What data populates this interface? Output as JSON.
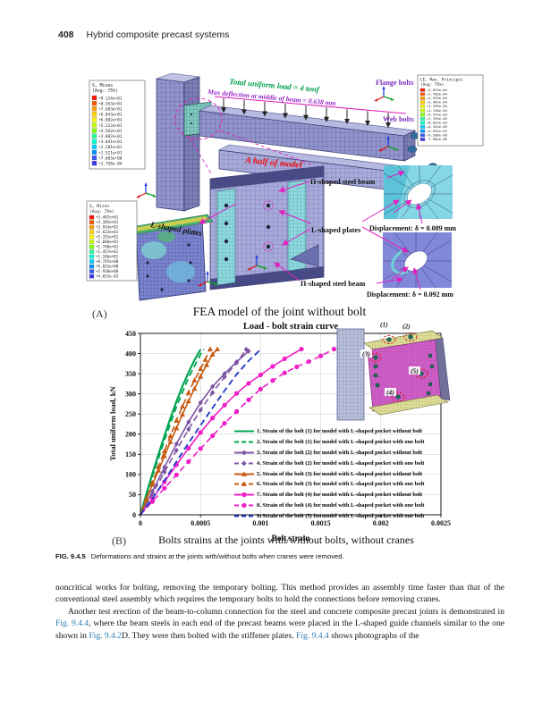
{
  "header": {
    "page_number": "408",
    "running_title": "Hybrid composite precast systems"
  },
  "panelA": {
    "label": "(A)",
    "caption": "FEA model of the joint without bolt"
  },
  "figureA": {
    "annotations": {
      "total_load": "Total uniform load = 4 tonf",
      "max_deflection": "Max deflection at middle of beam = 0.638 mm",
      "half_model": "A half of model",
      "beam_top": "Π-shaped steel beam",
      "plates_mid": "L-shaped plates",
      "beam_bottom": "Π-shaped steel beam",
      "disp1": "Displacement: δ = 0.089 mm",
      "disp2": "Displacement: δ = 0.092 mm",
      "flange_bolts": "Flange bolts",
      "web_bolts": "Web bolts",
      "plates_left": "L-shaped plates"
    },
    "colors": {
      "annotation_magenta": "#e020c0",
      "green_text": "#00a14b",
      "purple_text": "#9626c8",
      "red_text": "#f01010"
    },
    "legends": [
      {
        "title": "S, Mises",
        "subtitle": "(Avg: 75%)",
        "values": [
          "+9.124e+01",
          "+8.363e+01",
          "+7.603e+01",
          "+6.843e+01",
          "+6.082e+01",
          "+5.322e+01",
          "+4.562e+01",
          "+3.802e+01",
          "+3.041e+01",
          "+2.281e+01",
          "+1.521e+01",
          "+7.603e+00",
          "+1.758e-04"
        ]
      },
      {
        "title": "S, Mises",
        "subtitle": "(Avg: 75%)",
        "values": [
          "+3.497e+01",
          "+3.205e+01",
          "+2.914e+01",
          "+2.623e+01",
          "+2.331e+01",
          "+2.040e+01",
          "+1.748e+01",
          "+1.457e+01",
          "+1.166e+01",
          "+8.745e+00",
          "+5.832e+00",
          "+2.918e+00",
          "+4.653e-03"
        ]
      },
      {
        "title": "LE, Max. Principal",
        "subtitle": "(Avg: 75%)",
        "values": [
          "+1.874e-04",
          "+1.703e-04",
          "+1.533e-04",
          "+1.462e-04",
          "+1.299e-04",
          "+1.138e-04",
          "+9.474e-05",
          "+7.763e-05",
          "+6.053e-05",
          "+4.342e-05",
          "+2.632e-05",
          "+9.208e-06",
          "-7.902e-06"
        ]
      }
    ],
    "legend_colors": [
      "#ff1400",
      "#ff5a00",
      "#ff9e00",
      "#ffd200",
      "#fff800",
      "#c8ff00",
      "#82ff00",
      "#2effa0",
      "#00ffd2",
      "#00d2ff",
      "#0096ff",
      "#375afa",
      "#3c3cf0"
    ]
  },
  "chartB": {
    "panel_label": "(B)",
    "caption": "Bolts strains at the joints with/without bolts, without cranes",
    "inset_labels": [
      "(1)",
      "(2)",
      "(3)",
      "(4)",
      "(5)"
    ]
  },
  "chart_data": {
    "type": "line",
    "title": "Load - bolt strain curve",
    "xlabel": "Bolt strain",
    "ylabel": "Total uniform load, kN",
    "xlim": [
      0,
      0.0025
    ],
    "ylim": [
      0,
      450
    ],
    "xtick_labels": [
      "0",
      "0.0005",
      "0.001",
      "0.0015",
      "0.002",
      "0.0025"
    ],
    "xticks": [
      0,
      0.0005,
      0.001,
      0.0015,
      0.002,
      0.0025
    ],
    "yticks": [
      0,
      50,
      100,
      150,
      200,
      250,
      300,
      350,
      400,
      450
    ],
    "grid": true,
    "legend_position": "inside-right",
    "series": [
      {
        "name": "1. Strain of the bolt (1) for model with L-shaped pocket without bolt",
        "color": "#00a550",
        "dash": "solid",
        "marker": "none",
        "width": 2.2,
        "points": [
          [
            0,
            0
          ],
          [
            5e-05,
            52
          ],
          [
            0.0001,
            102
          ],
          [
            0.00015,
            150
          ],
          [
            0.0002,
            196
          ],
          [
            0.00025,
            240
          ],
          [
            0.0003,
            281
          ],
          [
            0.00035,
            319
          ],
          [
            0.0004,
            353
          ],
          [
            0.00045,
            384
          ],
          [
            0.0005,
            410
          ]
        ]
      },
      {
        "name": "2. Strain of the bolt (1) for model with L-shaped pocket with one bolt",
        "color": "#00a550",
        "dash": "dashed",
        "marker": "none",
        "width": 1.8,
        "points": [
          [
            0,
            0
          ],
          [
            0.0001,
            95
          ],
          [
            0.0002,
            185
          ],
          [
            0.0003,
            268
          ],
          [
            0.0004,
            340
          ],
          [
            0.0005,
            398
          ],
          [
            0.00053,
            411
          ]
        ]
      },
      {
        "name": "3. Strain of the bolt (2) for model with L-shaped pocket without bolt",
        "color": "#7d55a5",
        "dash": "solid",
        "marker": "diamond",
        "width": 1.6,
        "points": [
          [
            0,
            0
          ],
          [
            0.0001,
            58
          ],
          [
            0.0002,
            118
          ],
          [
            0.0003,
            176
          ],
          [
            0.0004,
            230
          ],
          [
            0.0005,
            278
          ],
          [
            0.0006,
            318
          ],
          [
            0.0007,
            350
          ],
          [
            0.0008,
            379
          ],
          [
            0.0009,
            406
          ]
        ]
      },
      {
        "name": "4. Strain of the bolt (2) for model with L-shaped pocket with one bolt",
        "color": "#7d55a5",
        "dash": "dashed",
        "marker": "diamond",
        "width": 1.6,
        "points": [
          [
            0,
            0
          ],
          [
            0.0001,
            52
          ],
          [
            0.0002,
            106
          ],
          [
            0.0003,
            160
          ],
          [
            0.0004,
            212
          ],
          [
            0.0005,
            260
          ],
          [
            0.0006,
            303
          ],
          [
            0.0007,
            342
          ],
          [
            0.0008,
            377
          ],
          [
            0.00088,
            410
          ]
        ]
      },
      {
        "name": "5. Strain of the bolt (3) for model with L-shaped pocket without bolt",
        "color": "#c55a11",
        "dash": "solid",
        "marker": "triangle",
        "width": 1.6,
        "points": [
          [
            0,
            0
          ],
          [
            5e-05,
            38
          ],
          [
            0.0001,
            75
          ],
          [
            0.00015,
            110
          ],
          [
            0.0002,
            146
          ],
          [
            0.00025,
            181
          ],
          [
            0.0003,
            215
          ],
          [
            0.00035,
            249
          ],
          [
            0.0004,
            282
          ],
          [
            0.00045,
            313
          ],
          [
            0.0005,
            343
          ],
          [
            0.00055,
            372
          ],
          [
            0.0006,
            398
          ],
          [
            0.00064,
            411
          ]
        ]
      },
      {
        "name": "6. Strain of the bolt (3) for model with L-shaped pocket with one bolt",
        "color": "#c55a11",
        "dash": "dashed",
        "marker": "triangle",
        "width": 1.6,
        "points": [
          [
            0,
            0
          ],
          [
            5e-05,
            40
          ],
          [
            0.0001,
            80
          ],
          [
            0.00015,
            119
          ],
          [
            0.0002,
            158
          ],
          [
            0.00025,
            196
          ],
          [
            0.0003,
            234
          ],
          [
            0.00035,
            269
          ],
          [
            0.0004,
            303
          ],
          [
            0.00045,
            334
          ],
          [
            0.0005,
            362
          ],
          [
            0.00054,
            385
          ],
          [
            0.00058,
            411
          ]
        ]
      },
      {
        "name": "7. Strain of the bolt (4) for model with L-shaped pocket without bolt",
        "color": "#f01ec8",
        "dash": "solid",
        "marker": "circle",
        "width": 1.6,
        "points": [
          [
            0,
            0
          ],
          [
            0.0001,
            40
          ],
          [
            0.0002,
            82
          ],
          [
            0.0003,
            124
          ],
          [
            0.0004,
            165
          ],
          [
            0.0005,
            204
          ],
          [
            0.0006,
            240
          ],
          [
            0.0007,
            272
          ],
          [
            0.0008,
            301
          ],
          [
            0.0009,
            326
          ],
          [
            0.001,
            347
          ],
          [
            0.0011,
            368
          ],
          [
            0.0012,
            387
          ],
          [
            0.00134,
            411
          ]
        ]
      },
      {
        "name": "8. Strain of the bolt (4) for model with L-shaped pocket with one bolt",
        "color": "#f01ec8",
        "dash": "dashed",
        "marker": "circle",
        "width": 1.6,
        "points": [
          [
            0,
            0
          ],
          [
            0.0001,
            33
          ],
          [
            0.0002,
            66
          ],
          [
            0.0003,
            99
          ],
          [
            0.0004,
            132
          ],
          [
            0.0005,
            164
          ],
          [
            0.0006,
            196
          ],
          [
            0.0007,
            227
          ],
          [
            0.0008,
            256
          ],
          [
            0.0009,
            285
          ],
          [
            0.001,
            312
          ],
          [
            0.0011,
            333
          ],
          [
            0.0012,
            352
          ],
          [
            0.0013,
            367
          ],
          [
            0.0014,
            380
          ],
          [
            0.0015,
            394
          ],
          [
            0.00161,
            411
          ]
        ]
      },
      {
        "name": "9. Strain of the bolt (5) for model with L-shaped pocket with one bolt",
        "color": "#2238c8",
        "dash": "dashed",
        "marker": "none",
        "width": 1.8,
        "points": [
          [
            0,
            0
          ],
          [
            0.0001,
            40
          ],
          [
            0.0002,
            85
          ],
          [
            0.0003,
            132
          ],
          [
            0.0004,
            178
          ],
          [
            0.0005,
            222
          ],
          [
            0.0006,
            265
          ],
          [
            0.0007,
            308
          ],
          [
            0.0008,
            348
          ],
          [
            0.0009,
            382
          ],
          [
            0.001,
            410
          ]
        ]
      }
    ]
  },
  "fig_caption": {
    "label": "FIG. 9.4.5",
    "text": "Deformations and strains at the joints with/without bolts when cranes were removed."
  },
  "body": {
    "paragraphs": [
      {
        "indent": false,
        "runs": [
          {
            "t": "noncritical works for bolting, removing the temporary bolting. This method provides an assembly time faster than that of the conventional steel assembly which requires the temporary bolts to hold the connections before removing cranes."
          }
        ]
      },
      {
        "indent": true,
        "runs": [
          {
            "t": "Another test erection of the beam-to-column connection for the steel and concrete composite precast joints is demonstrated in "
          },
          {
            "t": "Fig. 9.4.4",
            "link": true
          },
          {
            "t": ", where the beam steels in each end of the precast beams were placed in the L-shaped guide channels similar to the one shown in "
          },
          {
            "t": "Fig. 9.4.2",
            "link": true
          },
          {
            "t": "D. They were then bolted with the stiffener plates. "
          },
          {
            "t": "Fig. 9.4.4",
            "link": true
          },
          {
            "t": " shows photographs of the"
          }
        ]
      }
    ]
  }
}
